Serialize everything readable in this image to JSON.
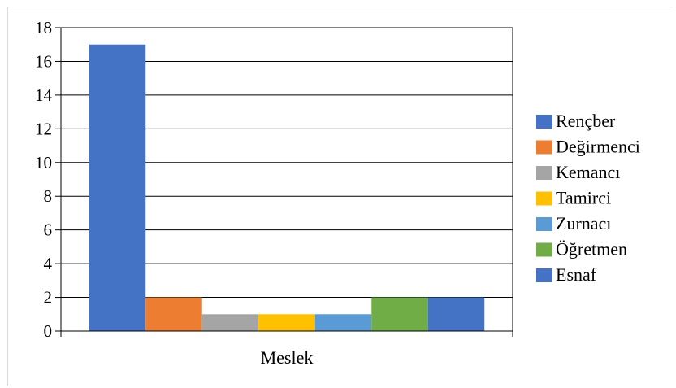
{
  "chart_data": {
    "type": "bar",
    "categories": [
      "Meslek"
    ],
    "series": [
      {
        "name": "Rençber",
        "values": [
          17
        ],
        "color": "#4472C4"
      },
      {
        "name": "Değirmenci",
        "values": [
          2
        ],
        "color": "#ED7D31"
      },
      {
        "name": "Kemancı",
        "values": [
          1
        ],
        "color": "#A5A5A5"
      },
      {
        "name": "Tamirci",
        "values": [
          1
        ],
        "color": "#FFC000"
      },
      {
        "name": "Zurnacı",
        "values": [
          1
        ],
        "color": "#5B9BD5"
      },
      {
        "name": "Öğretmen",
        "values": [
          2
        ],
        "color": "#70AD47"
      },
      {
        "name": "Esnaf",
        "values": [
          2
        ],
        "color": "#4472C4"
      }
    ],
    "y_ticks": [
      "0",
      "2",
      "4",
      "6",
      "8",
      "10",
      "12",
      "14",
      "16",
      "18"
    ],
    "ylim": [
      0,
      18
    ],
    "grid": true,
    "legend_position": "right"
  }
}
